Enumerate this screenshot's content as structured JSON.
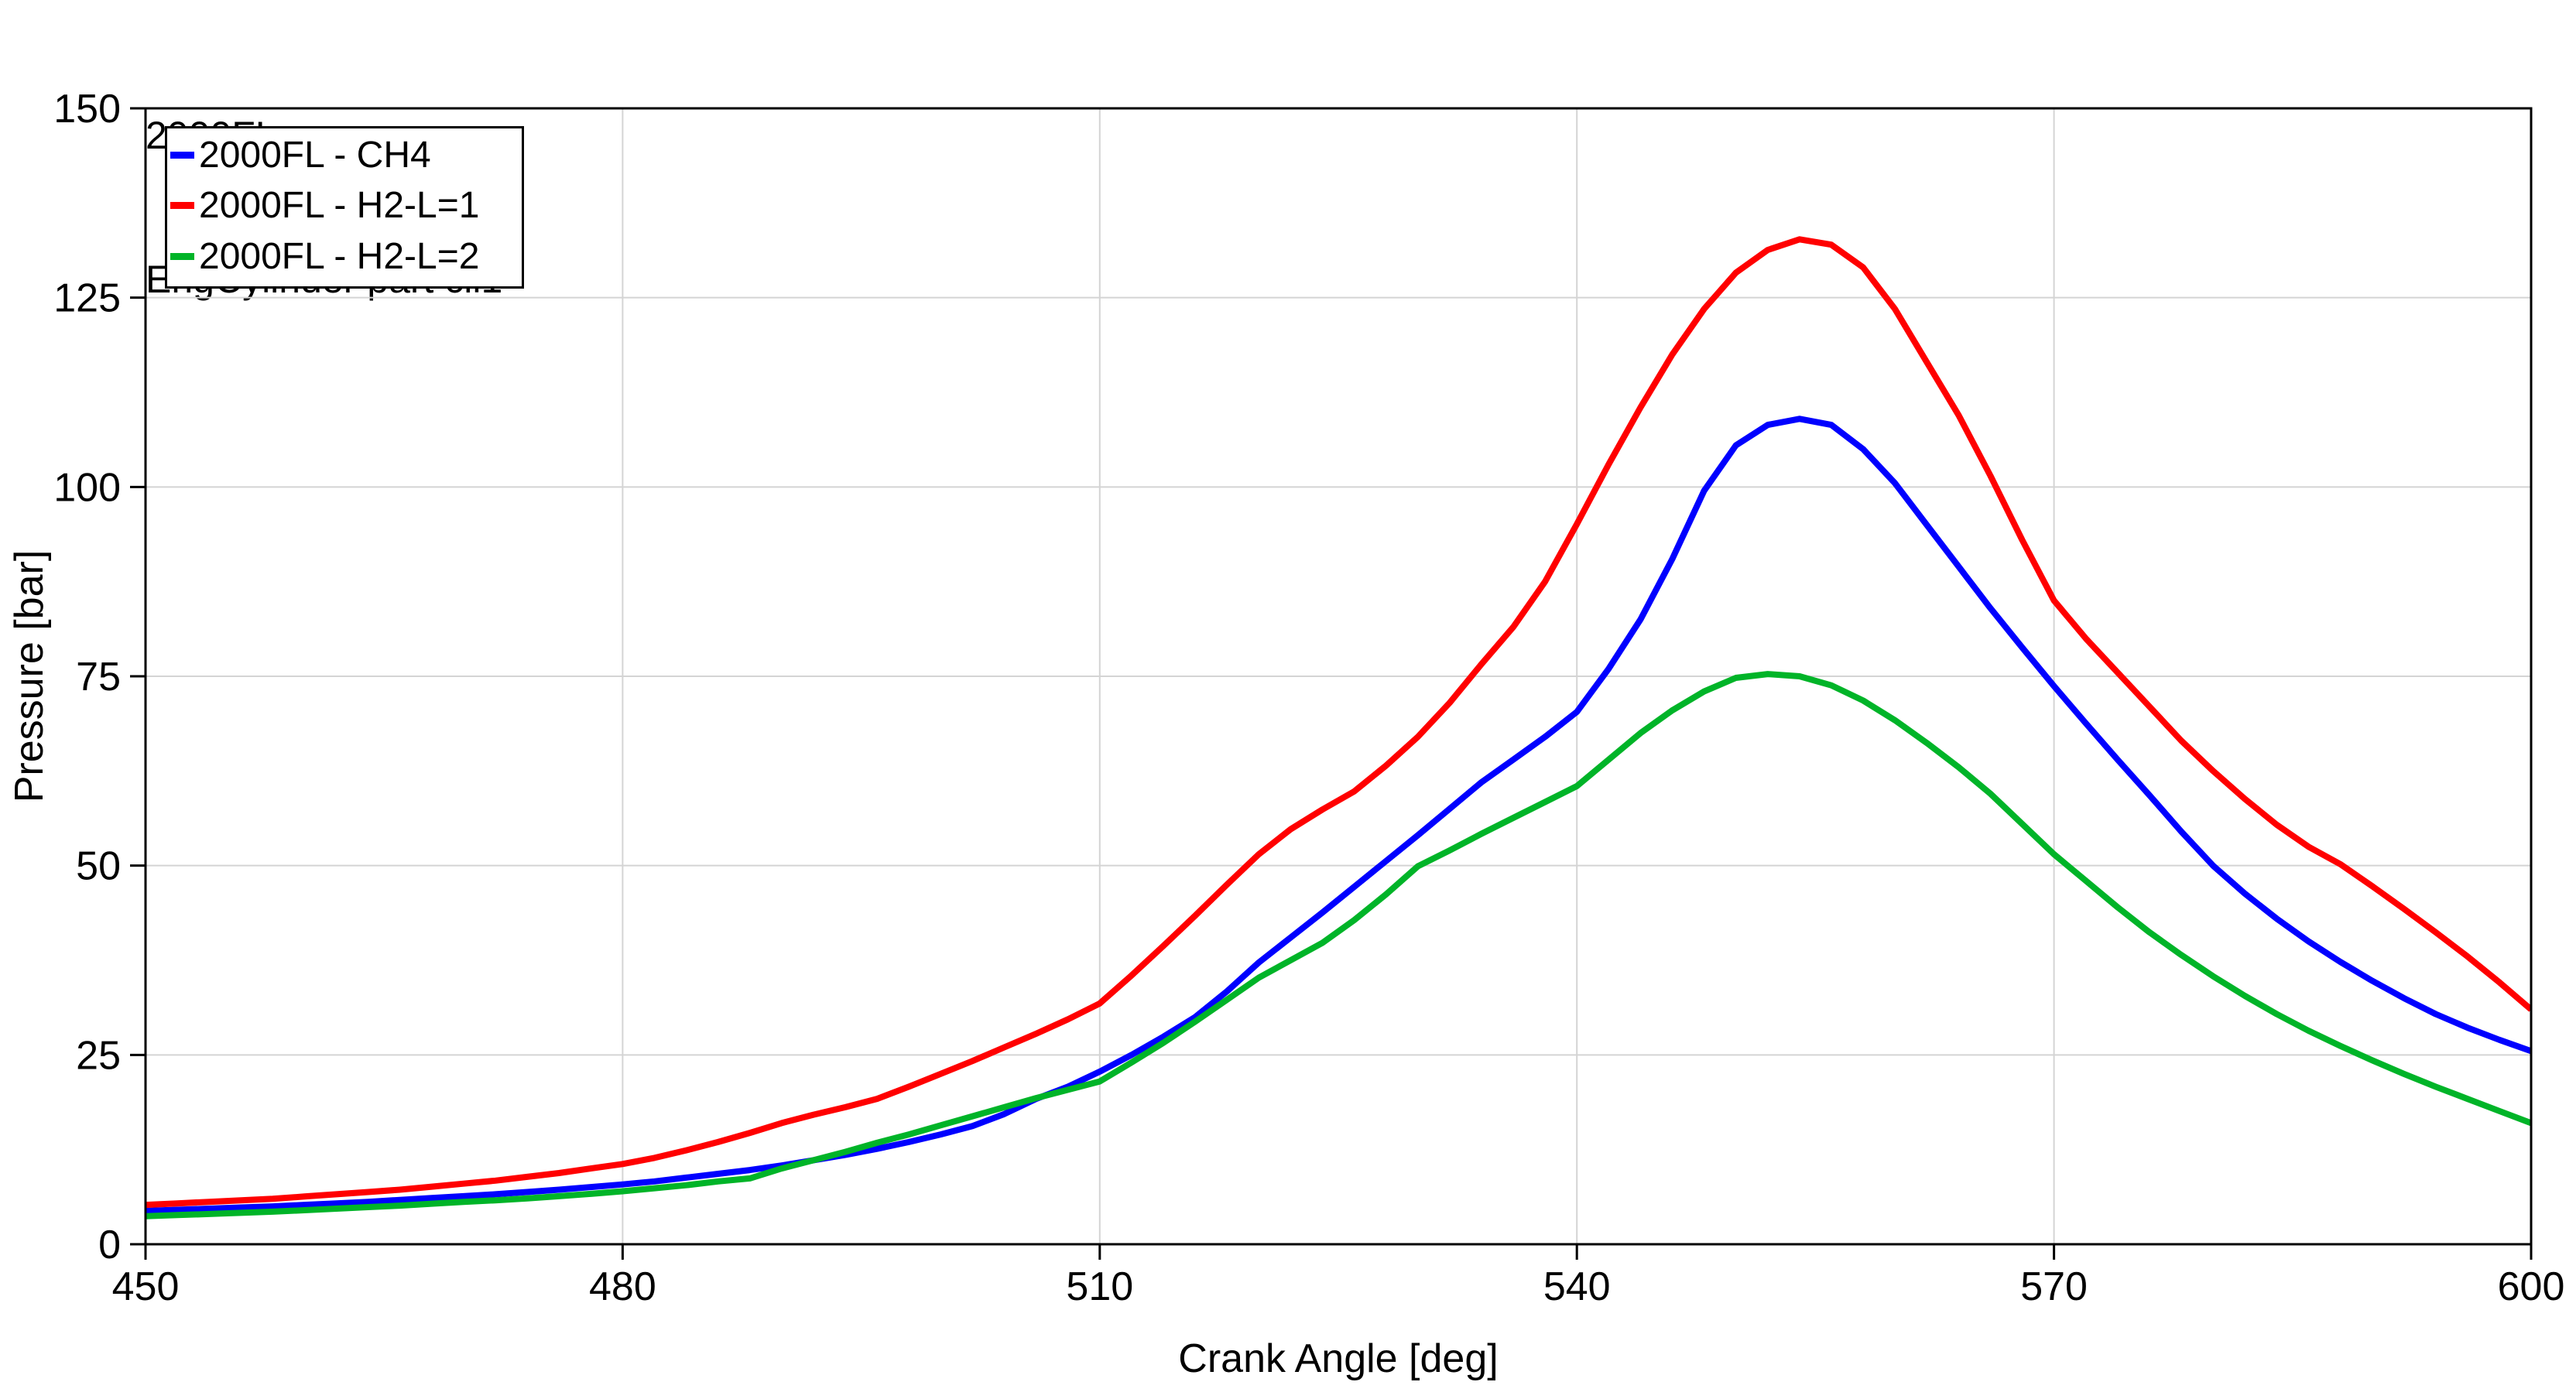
{
  "title": {
    "line1": "2000FL",
    "line2": "EngCylinder part cil1"
  },
  "chart_data": {
    "type": "line",
    "title": "2000FL",
    "subtitle": "EngCylinder part cil1",
    "xlabel": "Crank Angle [deg]",
    "ylabel": "Pressure [bar]",
    "xlim": [
      450,
      600
    ],
    "ylim": [
      0,
      150
    ],
    "xticks": [
      450,
      480,
      510,
      540,
      570,
      600
    ],
    "yticks": [
      0,
      25,
      50,
      75,
      100,
      125,
      150
    ],
    "grid": true,
    "legend_position": "top-left",
    "colors": {
      "axis": "#000000",
      "gridline": "#d4d4d4",
      "background": "#ffffff"
    },
    "x": [
      450,
      452,
      454,
      456,
      458,
      460,
      462,
      464,
      466,
      468,
      470,
      472,
      474,
      476,
      478,
      480,
      482,
      484,
      486,
      488,
      490,
      492,
      494,
      496,
      498,
      500,
      502,
      504,
      506,
      508,
      510,
      512,
      514,
      516,
      518,
      520,
      522,
      524,
      526,
      528,
      530,
      532,
      534,
      536,
      538,
      540,
      542,
      544,
      546,
      548,
      550,
      552,
      554,
      556,
      558,
      560,
      562,
      564,
      566,
      568,
      570,
      572,
      574,
      576,
      578,
      580,
      582,
      584,
      586,
      588,
      590,
      592,
      594,
      596,
      598,
      600
    ],
    "series": [
      {
        "name": "2000FL - CH4",
        "color": "#0000ff",
        "peak": {
          "x": 554,
          "y": 109.0
        },
        "values": [
          4.4,
          4.55,
          4.7,
          4.85,
          5.0,
          5.2,
          5.4,
          5.6,
          5.85,
          6.1,
          6.35,
          6.6,
          6.9,
          7.2,
          7.55,
          7.9,
          8.3,
          8.8,
          9.3,
          9.8,
          10.4,
          11.1,
          11.8,
          12.6,
          13.5,
          14.5,
          15.6,
          17.2,
          19.2,
          20.8,
          22.8,
          25.0,
          27.4,
          30.0,
          33.4,
          37.2,
          40.5,
          43.8,
          47.2,
          50.6,
          54.0,
          57.5,
          61.0,
          64.0,
          67.0,
          70.3,
          76.0,
          82.5,
          90.5,
          99.5,
          105.5,
          108.2,
          109.0,
          108.2,
          105.0,
          100.5,
          95.0,
          89.5,
          84.0,
          78.8,
          73.7,
          68.8,
          64.0,
          59.3,
          54.5,
          50.0,
          46.3,
          43.0,
          40.0,
          37.3,
          34.8,
          32.5,
          30.4,
          28.6,
          27.0,
          25.5
        ]
      },
      {
        "name": "2000FL - H2-L=1",
        "color": "#ff0000",
        "peak": {
          "x": 553.5,
          "y": 132.7
        },
        "values": [
          5.2,
          5.4,
          5.6,
          5.8,
          6.0,
          6.3,
          6.6,
          6.9,
          7.2,
          7.6,
          8.0,
          8.4,
          8.9,
          9.4,
          10.0,
          10.6,
          11.4,
          12.4,
          13.5,
          14.7,
          16.0,
          17.1,
          18.1,
          19.2,
          20.8,
          22.5,
          24.2,
          26.0,
          27.8,
          29.7,
          31.8,
          35.5,
          39.4,
          43.4,
          47.5,
          51.5,
          54.8,
          57.4,
          59.8,
          63.2,
          67.0,
          71.5,
          76.6,
          81.5,
          87.5,
          95.1,
          103.0,
          110.5,
          117.5,
          123.5,
          128.3,
          131.3,
          132.7,
          132.0,
          129.0,
          123.5,
          116.5,
          109.5,
          101.5,
          93.0,
          85.0,
          80.0,
          75.5,
          71.0,
          66.5,
          62.5,
          58.8,
          55.4,
          52.5,
          50.2,
          47.3,
          44.3,
          41.2,
          38.0,
          34.6,
          31.0
        ]
      },
      {
        "name": "2000FL - H2-L=2",
        "color": "#00b428",
        "peak": {
          "x": 551.8,
          "y": 75.3
        },
        "values": [
          3.7,
          3.85,
          4.0,
          4.15,
          4.3,
          4.5,
          4.7,
          4.9,
          5.1,
          5.35,
          5.6,
          5.8,
          6.05,
          6.35,
          6.65,
          7.0,
          7.4,
          7.8,
          8.3,
          8.7,
          10.0,
          11.1,
          12.2,
          13.4,
          14.5,
          15.7,
          16.9,
          18.1,
          19.3,
          20.4,
          21.5,
          24.0,
          26.6,
          29.4,
          32.3,
          35.2,
          37.5,
          39.8,
          42.8,
          46.2,
          49.9,
          52.0,
          54.2,
          56.3,
          58.4,
          60.5,
          64.0,
          67.5,
          70.5,
          73.0,
          74.8,
          75.3,
          75.0,
          73.8,
          71.8,
          69.2,
          66.2,
          63.0,
          59.5,
          55.5,
          51.5,
          48.0,
          44.5,
          41.2,
          38.2,
          35.4,
          32.8,
          30.4,
          28.2,
          26.2,
          24.3,
          22.5,
          20.8,
          19.2,
          17.6,
          16.0
        ]
      }
    ]
  }
}
